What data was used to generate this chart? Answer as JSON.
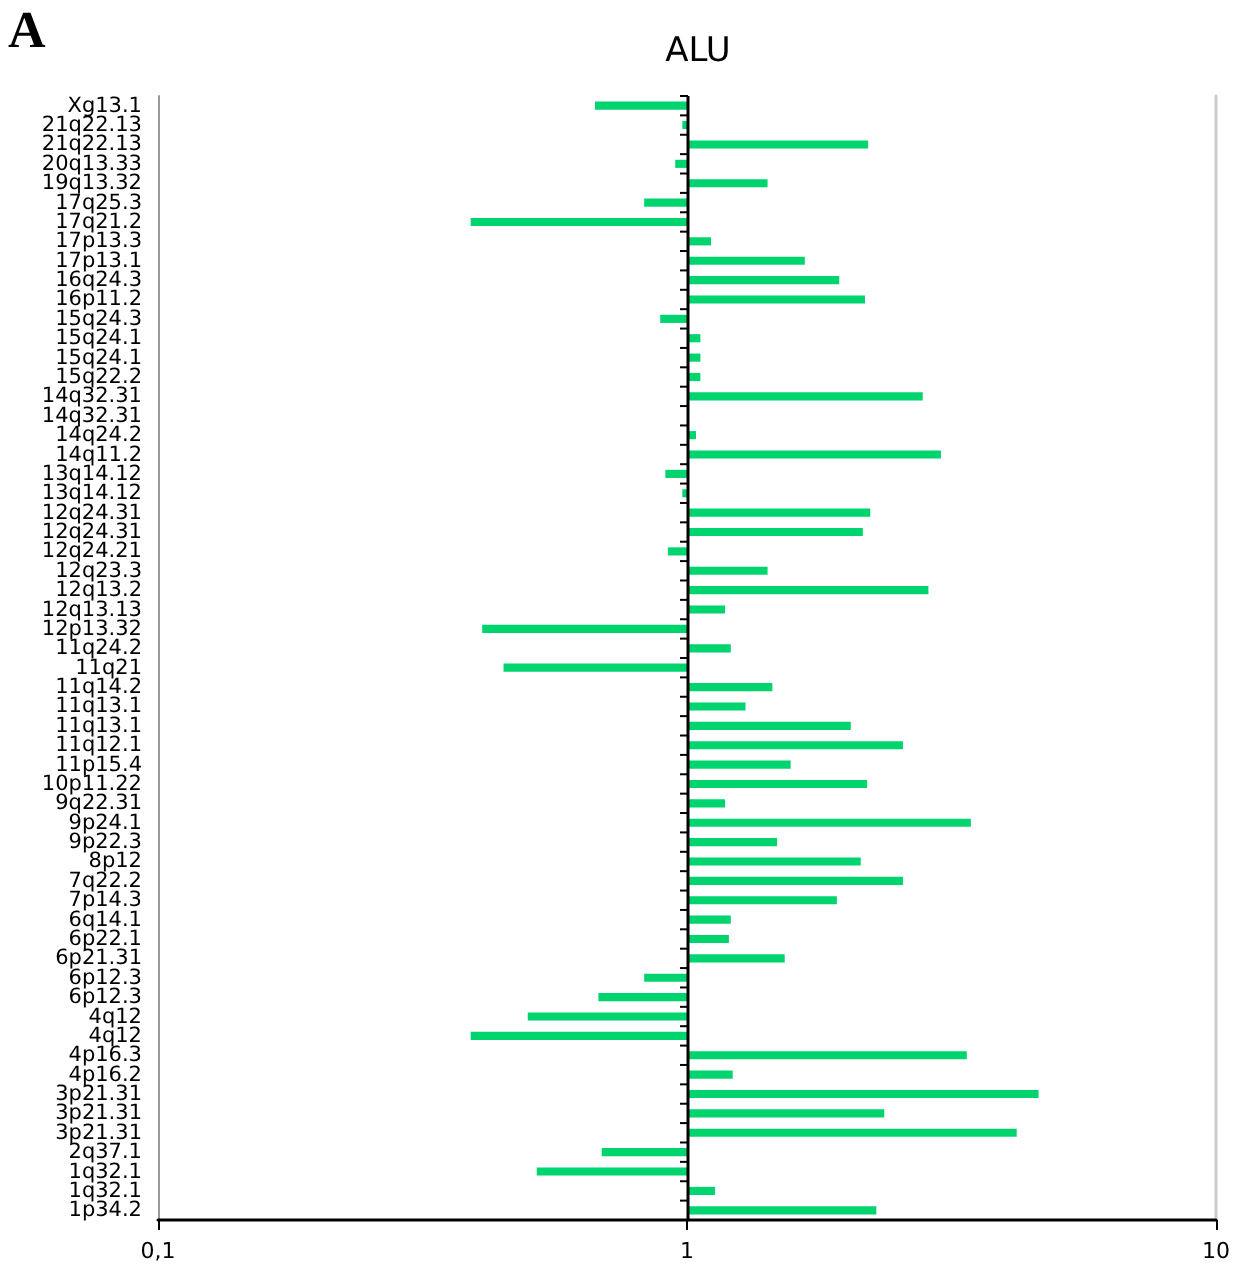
{
  "chart_data": {
    "type": "bar",
    "orientation": "horizontal",
    "title": "ALU",
    "annotations": [
      "A"
    ],
    "categories": [
      "Xg13.1",
      "21q22.13",
      "21q22.13",
      "20q13.33",
      "19q13.32",
      "17q25.3",
      "17q21.2",
      "17p13.3",
      "17p13.1",
      "16q24.3",
      "16p11.2",
      "15q24.3",
      "15q24.1",
      "15q24.1",
      "15q22.2",
      "14q32.31",
      "14q32.31",
      "14q24.2",
      "14q11.2",
      "13q14.12",
      "13q14.12",
      "12q24.31",
      "12q24.31",
      "12q24.21",
      "12q23.3",
      "12q13.2",
      "12q13.13",
      "12p13.32",
      "11q24.2",
      "11q21",
      "11q14.2",
      "11q13.1",
      "11q13.1",
      "11q12.1",
      "11p15.4",
      "10p11.22",
      "9q22.31",
      "9p24.1",
      "9p22.3",
      "8p12",
      "7q22.2",
      "7p14.3",
      "6q14.1",
      "6p22.1",
      "6p21.31",
      "6p12.3",
      "6p12.3",
      "4q12",
      "4q12",
      "4p16.3",
      "4p16.2",
      "3p21.31",
      "3p21.31",
      "3p21.31",
      "2q37.1",
      "1q32.1",
      "1q32.1",
      "1p34.2"
    ],
    "values": [
      -0.33,
      -0.02,
      1.2,
      -0.05,
      0.42,
      -0.17,
      -0.61,
      0.11,
      0.67,
      0.94,
      1.17,
      -0.11,
      0.06,
      0.06,
      0.06,
      1.79,
      null,
      0.04,
      2.02,
      -0.09,
      -0.02,
      1.22,
      1.15,
      -0.08,
      0.42,
      1.86,
      0.18,
      -0.59,
      0.21,
      -0.55,
      0.45,
      0.29,
      1.04,
      1.56,
      0.57,
      1.19,
      0.18,
      2.44,
      0.48,
      1.13,
      1.56,
      0.92,
      0.21,
      0.2,
      0.53,
      -0.17,
      -0.32,
      -0.5,
      -0.61,
      2.38,
      0.22,
      3.62,
      1.36,
      3.2,
      -0.31,
      -0.48,
      0.13,
      1.28
    ],
    "base": [
      1,
      1,
      1,
      1,
      1,
      1,
      1,
      1,
      1,
      1,
      1,
      1,
      1,
      1,
      1,
      1,
      null,
      1,
      1,
      1,
      1,
      1,
      1,
      1,
      1,
      1,
      1,
      1,
      1,
      1,
      1,
      1,
      1,
      1,
      1,
      1,
      1,
      1,
      1,
      1,
      1,
      1,
      1,
      1,
      1,
      1,
      1,
      1,
      1,
      1,
      1,
      1,
      1,
      1,
      1,
      1,
      1,
      1
    ],
    "ref_lines": [
      {
        "axis": "x",
        "value": 1,
        "color": "#000000"
      }
    ],
    "color": "#00d46e",
    "log": "x",
    "xlim": [
      0.1,
      10
    ],
    "xticks": [
      {
        "value": 0.1,
        "label": "0,1"
      },
      1,
      10
    ]
  }
}
